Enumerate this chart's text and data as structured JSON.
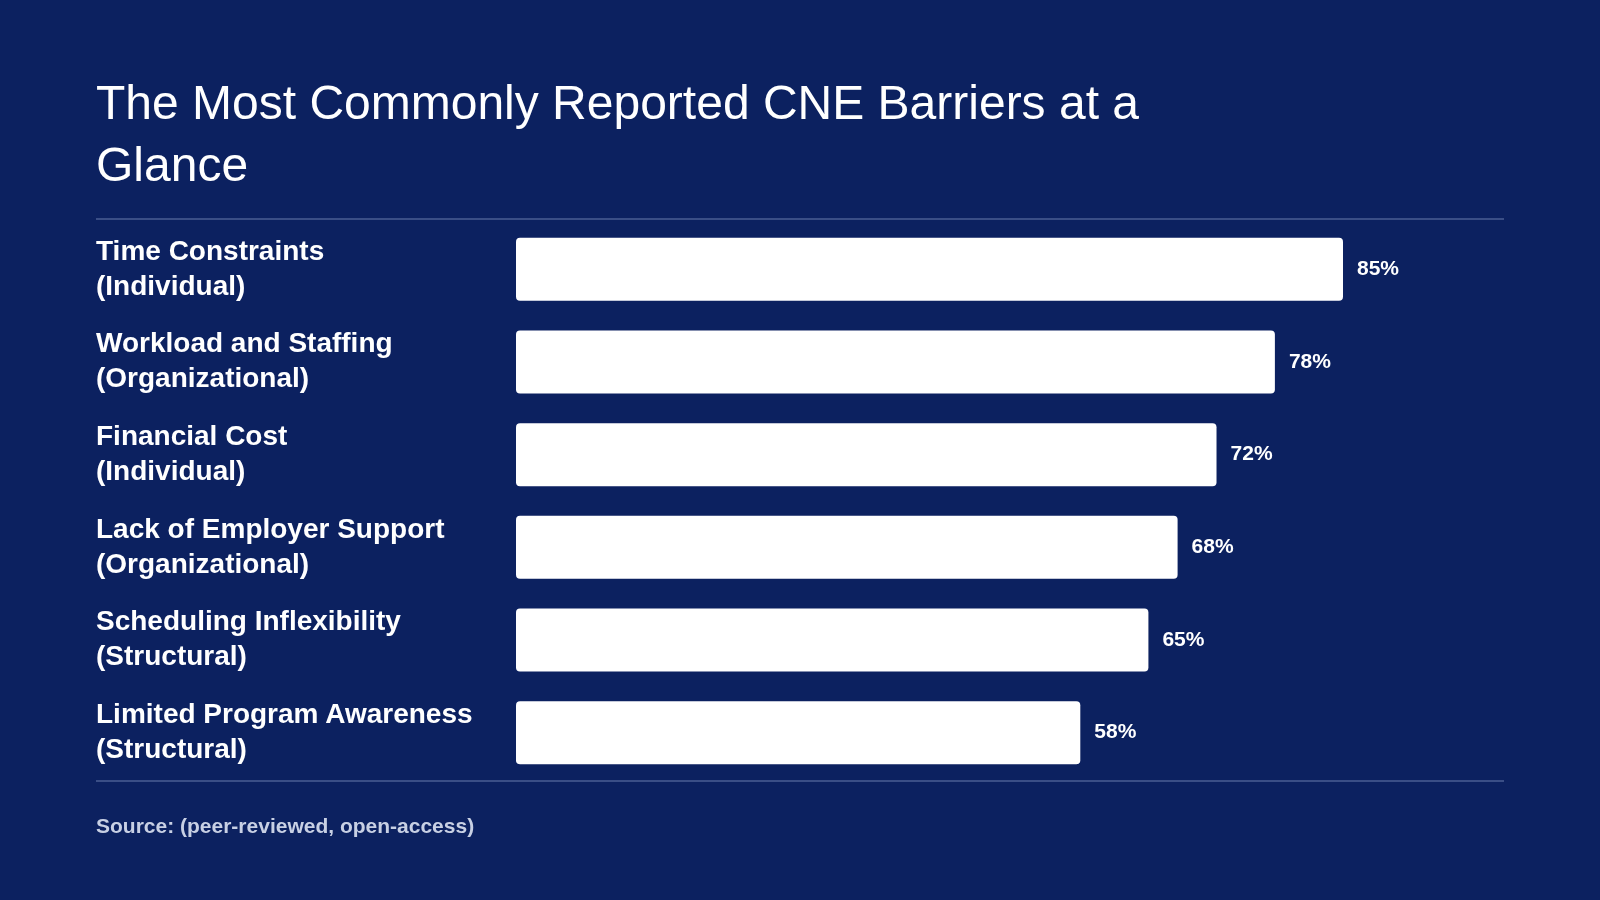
{
  "chart_data": {
    "type": "bar",
    "orientation": "horizontal",
    "title": "The Most Commonly Reported CNE Barriers at a Glance",
    "categories": [
      "Time Constraints\n(Individual)",
      "Workload and Staffing\n(Organizational)",
      "Financial Cost\n(Individual)",
      "Lack of Employer Support\n(Organizational)",
      "Scheduling Inflexibility\n(Structural)",
      "Limited Program Awareness\n(Structural)"
    ],
    "values": [
      85,
      78,
      72,
      68,
      65,
      58
    ],
    "value_labels": [
      "85%",
      "78%",
      "72%",
      "68%",
      "65%",
      "58%"
    ],
    "color": "#ffffff",
    "tick_labels": "y",
    "grid": false,
    "legend": false,
    "annotations": [
      "Source: (peer-reviewed, open-access)"
    ]
  }
}
